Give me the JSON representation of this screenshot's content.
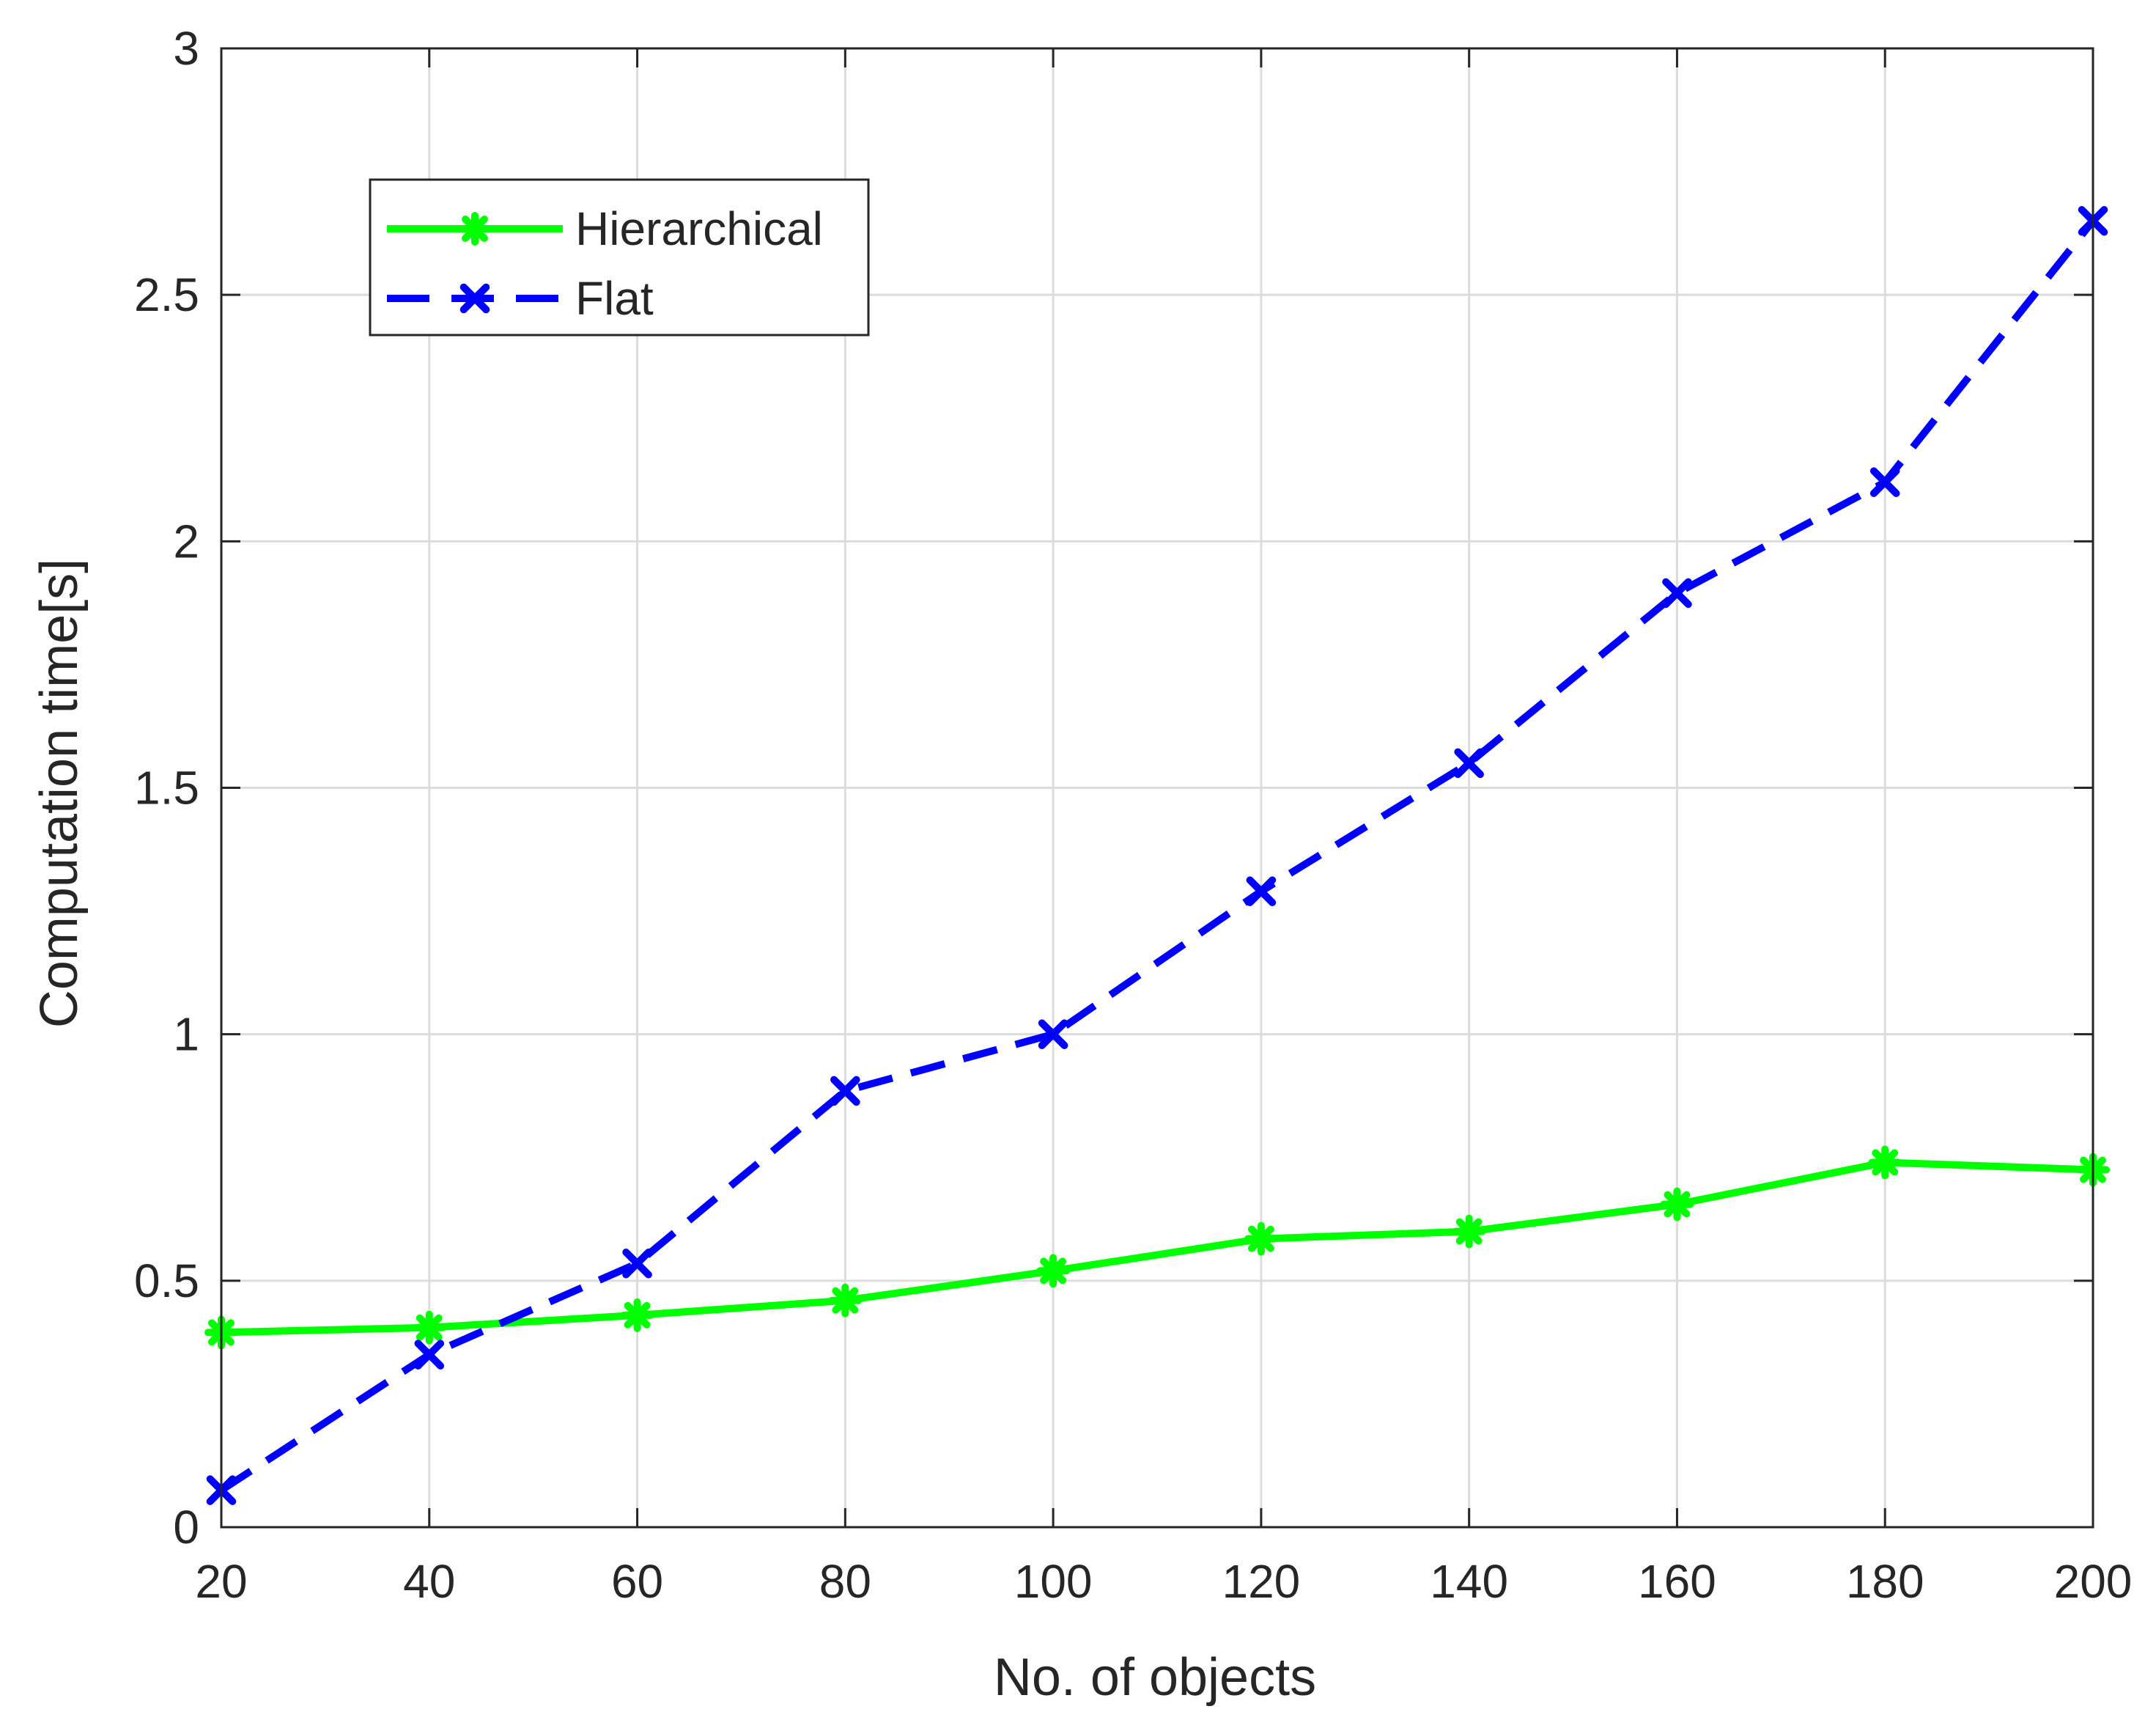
{
  "chart_data": {
    "type": "line",
    "title": "",
    "xlabel": "No. of objects",
    "ylabel": "Computation time[s]",
    "x": [
      20,
      40,
      60,
      80,
      100,
      120,
      140,
      160,
      180,
      200
    ],
    "xlim": [
      20,
      200
    ],
    "ylim": [
      0,
      3
    ],
    "x_ticks": [
      20,
      40,
      60,
      80,
      100,
      120,
      140,
      160,
      180,
      200
    ],
    "y_ticks": [
      0,
      0.5,
      1,
      1.5,
      2,
      2.5,
      3
    ],
    "x_tick_labels": [
      "20",
      "40",
      "60",
      "80",
      "100",
      "120",
      "140",
      "160",
      "180",
      "200"
    ],
    "y_tick_labels": [
      "0",
      "0.5",
      "1",
      "1.5",
      "2",
      "2.5",
      "3"
    ],
    "grid": true,
    "legend_position": "top-left",
    "series": [
      {
        "name": "Hierarchical",
        "color": "#00ff00",
        "line_style": "solid",
        "marker": "asterisk",
        "values": [
          0.395,
          0.405,
          0.43,
          0.46,
          0.52,
          0.585,
          0.6,
          0.655,
          0.74,
          0.725
        ]
      },
      {
        "name": "Flat",
        "color": "#0000ff",
        "line_style": "dashed",
        "marker": "x",
        "values": [
          0.075,
          0.35,
          0.535,
          0.885,
          1.0,
          1.29,
          1.55,
          1.895,
          2.12,
          2.65
        ]
      }
    ]
  }
}
